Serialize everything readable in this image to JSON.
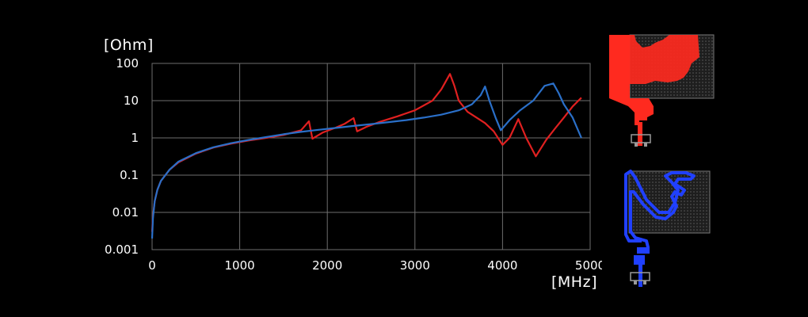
{
  "chart_data": {
    "type": "line",
    "ylabel": "[Ohm]",
    "xlabel": "[MHz]",
    "xlim": [
      0,
      5000
    ],
    "ylim": [
      0.001,
      100
    ],
    "yscale": "log",
    "grid": true,
    "x_ticks": [
      0,
      1000,
      2000,
      3000,
      4000,
      5000
    ],
    "x_tick_labels": [
      "0",
      "1000",
      "2000",
      "3000",
      "4000",
      "5000"
    ],
    "y_ticks": [
      0.001,
      0.01,
      0.1,
      1,
      10,
      100
    ],
    "y_tick_labels": [
      "0.001",
      "0.01",
      "0.1",
      "1",
      "10",
      "100"
    ],
    "series": [
      {
        "color": "#e02020",
        "points": [
          [
            0,
            0.003
          ],
          [
            10,
            0.008
          ],
          [
            30,
            0.02
          ],
          [
            60,
            0.04
          ],
          [
            100,
            0.07
          ],
          [
            200,
            0.14
          ],
          [
            300,
            0.22
          ],
          [
            500,
            0.38
          ],
          [
            700,
            0.55
          ],
          [
            900,
            0.7
          ],
          [
            1100,
            0.85
          ],
          [
            1300,
            1.0
          ],
          [
            1500,
            1.2
          ],
          [
            1700,
            1.6
          ],
          [
            1790,
            2.8
          ],
          [
            1830,
            0.95
          ],
          [
            1950,
            1.4
          ],
          [
            2100,
            1.9
          ],
          [
            2200,
            2.4
          ],
          [
            2300,
            3.4
          ],
          [
            2340,
            1.5
          ],
          [
            2450,
            2.0
          ],
          [
            2600,
            2.7
          ],
          [
            2800,
            3.8
          ],
          [
            3000,
            5.5
          ],
          [
            3200,
            10
          ],
          [
            3300,
            20
          ],
          [
            3400,
            52
          ],
          [
            3450,
            25
          ],
          [
            3500,
            10
          ],
          [
            3600,
            5
          ],
          [
            3800,
            2.5
          ],
          [
            3900,
            1.5
          ],
          [
            4000,
            0.65
          ],
          [
            4080,
            1.0
          ],
          [
            4180,
            3.2
          ],
          [
            4270,
            1.0
          ],
          [
            4380,
            0.32
          ],
          [
            4500,
            0.9
          ],
          [
            4600,
            1.8
          ],
          [
            4700,
            3.5
          ],
          [
            4800,
            7
          ],
          [
            4900,
            12
          ]
        ]
      },
      {
        "color": "#2a6fc8",
        "points": [
          [
            0,
            0.002
          ],
          [
            10,
            0.007
          ],
          [
            30,
            0.02
          ],
          [
            60,
            0.04
          ],
          [
            100,
            0.07
          ],
          [
            200,
            0.14
          ],
          [
            300,
            0.23
          ],
          [
            500,
            0.39
          ],
          [
            700,
            0.56
          ],
          [
            900,
            0.72
          ],
          [
            1100,
            0.88
          ],
          [
            1300,
            1.05
          ],
          [
            1500,
            1.25
          ],
          [
            1700,
            1.45
          ],
          [
            1900,
            1.65
          ],
          [
            2100,
            1.85
          ],
          [
            2300,
            2.1
          ],
          [
            2500,
            2.35
          ],
          [
            2700,
            2.65
          ],
          [
            2900,
            3.0
          ],
          [
            3100,
            3.5
          ],
          [
            3300,
            4.2
          ],
          [
            3500,
            5.5
          ],
          [
            3650,
            8
          ],
          [
            3750,
            14
          ],
          [
            3800,
            24
          ],
          [
            3850,
            10
          ],
          [
            3920,
            3.5
          ],
          [
            3980,
            1.6
          ],
          [
            4080,
            3.0
          ],
          [
            4200,
            5.5
          ],
          [
            4350,
            10
          ],
          [
            4480,
            25
          ],
          [
            4580,
            29
          ],
          [
            4640,
            16
          ],
          [
            4700,
            8
          ],
          [
            4800,
            3.5
          ],
          [
            4900,
            1.0
          ]
        ]
      }
    ]
  },
  "colors": {
    "background": "#000000",
    "grid": "#6e6e6e",
    "text": "#ffffff",
    "red_series": "#e02020",
    "blue_series": "#2a6fc8",
    "antenna_red": "#ff2a1f",
    "antenna_blue": "#2040ff"
  },
  "illustrations": {
    "top": "red-antenna-pattern-icon",
    "bottom": "blue-meander-antenna-icon"
  }
}
